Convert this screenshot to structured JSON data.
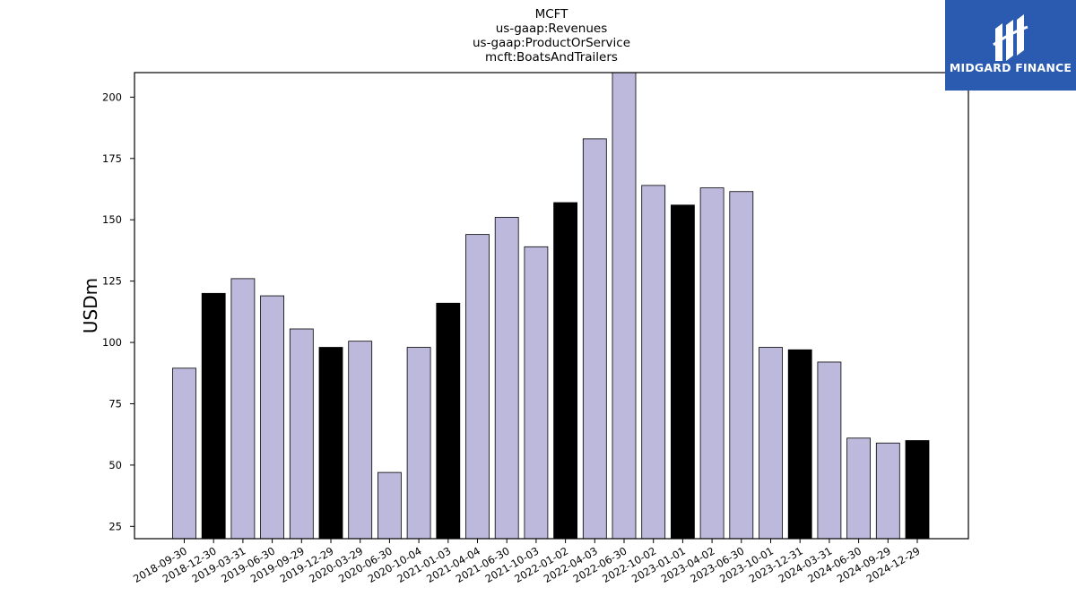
{
  "branding": {
    "logo_text": "MIDGARD FINANCE"
  },
  "colors": {
    "bar_default": "#bcb9dc",
    "bar_highlight": "#000000",
    "logo_bg": "#2b5bb0"
  },
  "chart_data": {
    "type": "bar",
    "title_lines": [
      "MCFT",
      "us-gaap:Revenues",
      "us-gaap:ProductOrService",
      "mcft:BoatsAndTrailers"
    ],
    "ylabel": "USDm",
    "xlabel": "",
    "ylim": [
      20,
      210
    ],
    "yticks": [
      25,
      50,
      75,
      100,
      125,
      150,
      175,
      200
    ],
    "categories": [
      "2018-09-30",
      "2018-12-30",
      "2019-03-31",
      "2019-06-30",
      "2019-09-29",
      "2019-12-29",
      "2020-03-29",
      "2020-06-30",
      "2020-10-04",
      "2021-01-03",
      "2021-04-04",
      "2021-06-30",
      "2021-10-03",
      "2022-01-02",
      "2022-04-03",
      "2022-06-30",
      "2022-10-02",
      "2023-01-01",
      "2023-04-02",
      "2023-06-30",
      "2023-10-01",
      "2023-12-31",
      "2024-03-31",
      "2024-06-30",
      "2024-09-29",
      "2024-12-29"
    ],
    "values": [
      89.5,
      120,
      126,
      119,
      105.5,
      98,
      100.5,
      47,
      98,
      116,
      144,
      151,
      139,
      157,
      183,
      211,
      164,
      156,
      163,
      161.5,
      98,
      97,
      92,
      61,
      59,
      60
    ],
    "highlighted": [
      false,
      true,
      false,
      false,
      false,
      true,
      false,
      false,
      false,
      true,
      false,
      false,
      false,
      true,
      false,
      false,
      false,
      true,
      false,
      false,
      false,
      true,
      false,
      false,
      false,
      true
    ],
    "grid": false,
    "legend": "none"
  }
}
